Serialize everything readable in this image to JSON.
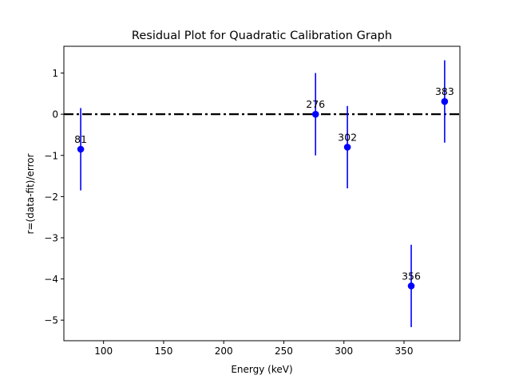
{
  "chart_data": {
    "type": "scatter",
    "title": "Residual Plot for Quadratic Calibration Graph",
    "xlabel": "Energy (keV)",
    "ylabel": "r=(data-fit)/error",
    "xlim": [
      67.0,
      396.5
    ],
    "ylim": [
      -5.5,
      1.65
    ],
    "xticks": [
      100,
      150,
      200,
      250,
      300,
      350
    ],
    "yticks": [
      1,
      0,
      -1,
      -2,
      -3,
      -4,
      -5
    ],
    "ytick_labels": [
      "1",
      "0",
      "−1",
      "−2",
      "−3",
      "−4",
      "−5"
    ],
    "grid": false,
    "reference_line": {
      "y": 0,
      "style": "dash-dot",
      "color": "#000000"
    },
    "marker_color": "#0000ff",
    "points": [
      {
        "x": 81.0,
        "y": -0.85,
        "yerr": 1.0,
        "label": "81"
      },
      {
        "x": 276.4,
        "y": 0.0,
        "yerr": 1.0,
        "label": "276"
      },
      {
        "x": 302.9,
        "y": -0.8,
        "yerr": 1.0,
        "label": "302"
      },
      {
        "x": 356.0,
        "y": -4.17,
        "yerr": 1.0,
        "label": "356"
      },
      {
        "x": 383.8,
        "y": 0.31,
        "yerr": 1.0,
        "label": "383"
      }
    ]
  }
}
